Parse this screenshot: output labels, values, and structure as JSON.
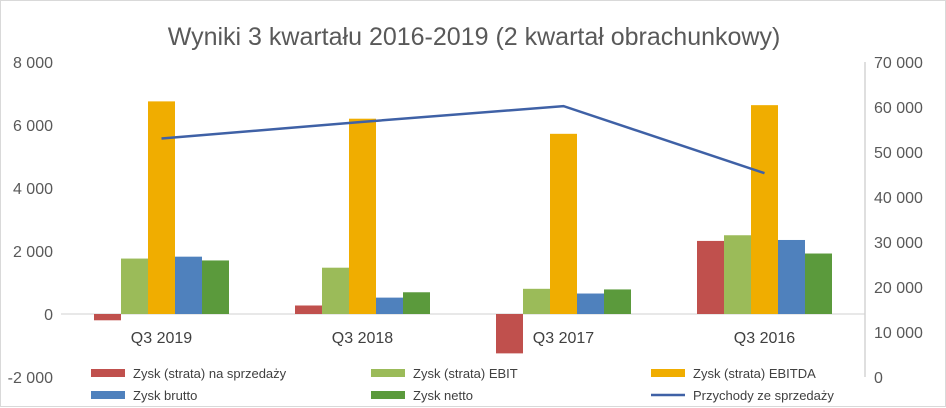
{
  "chart_data": {
    "type": "bar",
    "title": "Wyniki 3 kwartału 2016-2019 (2 kwartał obrachunkowy)",
    "categories": [
      "Q3 2019",
      "Q3 2018",
      "Q3 2017",
      "Q3 2016"
    ],
    "y_left": {
      "min": -2000,
      "max": 8000,
      "ticks": [
        "8 000",
        "6 000",
        "4 000",
        "2 000",
        "0",
        "-2 000"
      ]
    },
    "y_right": {
      "min": 0,
      "max": 70000,
      "ticks": [
        "70 000",
        "60 000",
        "50 000",
        "40 000",
        "30 000",
        "20 000",
        "10 000",
        "0"
      ]
    },
    "grid": false,
    "legend_position": "bottom",
    "series": [
      {
        "name": "Zysk (strata) na sprzedaży",
        "color": "#c0504d",
        "values": [
          -200,
          270,
          -1250,
          2320
        ],
        "axis": "left",
        "kind": "bar"
      },
      {
        "name": "Zysk (strata) EBIT",
        "color": "#9bbb59",
        "values": [
          1760,
          1470,
          800,
          2500
        ],
        "axis": "left",
        "kind": "bar"
      },
      {
        "name": "Zysk (strata) EBITDA",
        "color": "#f0ad00",
        "values": [
          6750,
          6200,
          5720,
          6630
        ],
        "axis": "left",
        "kind": "bar"
      },
      {
        "name": "Zysk brutto",
        "color": "#4f81bd",
        "values": [
          1820,
          520,
          650,
          2350
        ],
        "axis": "left",
        "kind": "bar"
      },
      {
        "name": "Zysk netto",
        "color": "#5b9a3c",
        "values": [
          1700,
          690,
          780,
          1920
        ],
        "axis": "left",
        "kind": "bar"
      },
      {
        "name": "Przychody ze sprzedaży",
        "color": "#3f61a6",
        "values": [
          53000,
          56700,
          60200,
          45300
        ],
        "axis": "right",
        "kind": "line"
      }
    ]
  }
}
